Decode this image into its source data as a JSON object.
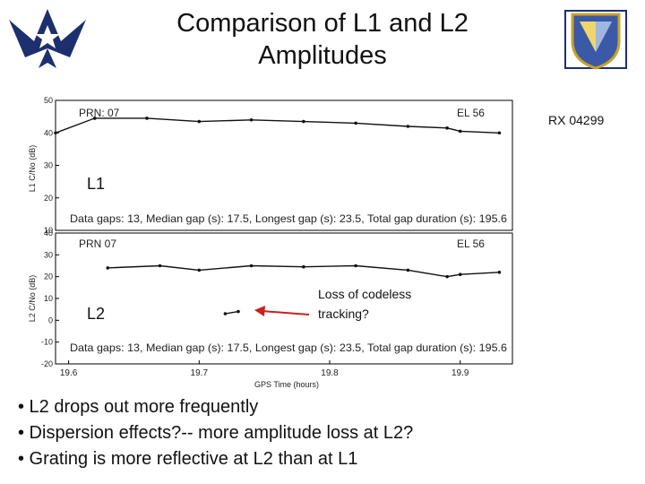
{
  "slide": {
    "title_line1": "Comparison of L1 and L2",
    "title_line2": "Amplitudes",
    "receiver_label": "RX 04299",
    "l1_label": "L1",
    "l2_label": "L2",
    "annotation_line1": "Loss of codeless",
    "annotation_line2": "tracking?",
    "bullets": [
      "• L2 drops out more frequently",
      "• Dispersion effects?-- more amplitude loss at L2?",
      "• Grating is more reflective at L2 than at L1"
    ],
    "logo_left": "us-air-force-wings-icon",
    "logo_right": "afrl-shield-icon",
    "arrow_color": "#cc1f1f"
  },
  "chart_data": [
    {
      "type": "scatter",
      "panel": "L1",
      "ylabel": "L1 C/No (dB)",
      "ylim": [
        10,
        50
      ],
      "yticks": [
        "10",
        "20",
        "30",
        "40",
        "50"
      ],
      "xlim": [
        19.59,
        19.94
      ],
      "prn_text": "PRN: 07",
      "el_text": "EL  56",
      "stats_text": "Data gaps: 13,   Median gap (s): 17.5,   Longest gap (s): 23.5,   Total gap duration (s): 195.6",
      "series": [
        {
          "points": [
            [
              19.59,
              40
            ],
            [
              19.62,
              44.5
            ],
            [
              19.66,
              44.5
            ],
            [
              19.7,
              43.5
            ],
            [
              19.74,
              44
            ],
            [
              19.78,
              43.5
            ],
            [
              19.82,
              43
            ],
            [
              19.86,
              42
            ],
            [
              19.89,
              41.5
            ],
            [
              19.9,
              40.5
            ],
            [
              19.93,
              40
            ]
          ]
        }
      ]
    },
    {
      "type": "scatter",
      "panel": "L2",
      "ylabel": "L2 C/No (dB)",
      "ylim": [
        -20,
        40
      ],
      "yticks": [
        "-20",
        "-10",
        "0",
        "10",
        "20",
        "30",
        "40"
      ],
      "xlim": [
        19.59,
        19.94
      ],
      "xticks": [
        "19.6",
        "19.7",
        "19.8",
        "19.9"
      ],
      "xlabel": "GPS Time (hours)",
      "prn_text": "PRN  07",
      "el_text": "EL  56",
      "stats_text": "Data gaps: 13,   Median gap (s): 17.5,   Longest gap (s): 23.5,   Total gap duration (s): 195.6",
      "series": [
        {
          "points": [
            [
              19.63,
              24
            ],
            [
              19.67,
              25
            ],
            [
              19.7,
              23
            ],
            [
              19.74,
              25
            ],
            [
              19.78,
              24.5
            ],
            [
              19.82,
              25
            ],
            [
              19.86,
              23
            ],
            [
              19.89,
              20
            ],
            [
              19.9,
              21
            ],
            [
              19.93,
              22
            ]
          ]
        },
        {
          "points": [
            [
              19.72,
              3
            ],
            [
              19.73,
              4
            ]
          ]
        }
      ]
    }
  ]
}
